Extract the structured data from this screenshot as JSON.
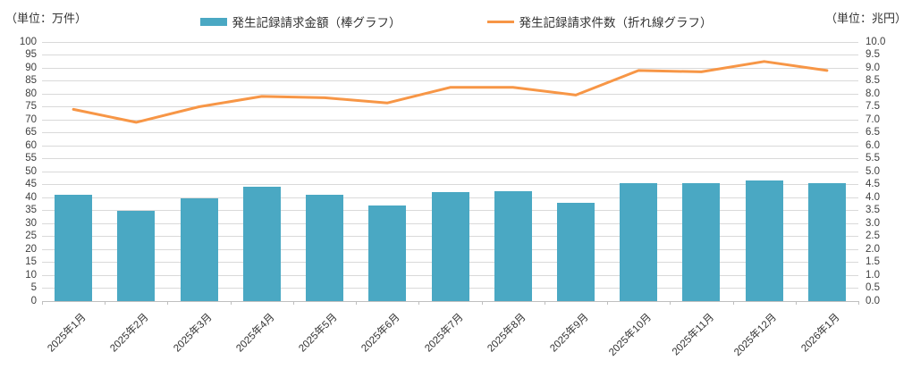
{
  "units": {
    "left": "（単位：万件）",
    "right": "（単位：兆円）"
  },
  "legend": {
    "items": [
      {
        "label": "発生記録請求金額（棒グラフ）",
        "type": "bar",
        "color": "#4AA8C3"
      },
      {
        "label": "発生記録請求件数（折れ線グラフ）",
        "type": "line",
        "color": "#F79646"
      }
    ]
  },
  "chart_data": {
    "type": "bar",
    "subtype": "combo-bar-line",
    "categories": [
      "2025年1月",
      "2025年2月",
      "2025年3月",
      "2025年4月",
      "2025年5月",
      "2025年6月",
      "2025年7月",
      "2025年8月",
      "2025年9月",
      "2025年10月",
      "2025年11月",
      "2025年12月",
      "2026年1月"
    ],
    "series": [
      {
        "name": "発生記録請求金額（棒グラフ）",
        "type": "bar",
        "axis": "left",
        "color": "#4AA8C3",
        "values": [
          41,
          35,
          39.5,
          44,
          41,
          37,
          42,
          42.5,
          38,
          45.5,
          45.5,
          46.5,
          45.5
        ]
      },
      {
        "name": "発生記録請求件数（折れ線グラフ）",
        "type": "line",
        "axis": "right",
        "color": "#F79646",
        "values": [
          7.4,
          6.9,
          7.5,
          7.9,
          7.85,
          7.65,
          8.25,
          8.25,
          7.95,
          8.9,
          8.85,
          9.25,
          8.9
        ]
      }
    ],
    "left_axis": {
      "label": "（単位：万件）",
      "min": 0,
      "max": 100,
      "step": 5,
      "ticks": [
        "100",
        "95",
        "90",
        "85",
        "80",
        "75",
        "70",
        "65",
        "60",
        "55",
        "50",
        "45",
        "40",
        "35",
        "30",
        "25",
        "20",
        "15",
        "10",
        "5",
        "0"
      ]
    },
    "right_axis": {
      "label": "（単位：兆円）",
      "min": 0,
      "max": 10,
      "step": 0.5,
      "ticks": [
        "10.0",
        "9.5",
        "9.0",
        "8.5",
        "8.0",
        "7.5",
        "7.0",
        "6.5",
        "6.0",
        "5.5",
        "5.0",
        "4.5",
        "4.0",
        "3.5",
        "3.0",
        "2.5",
        "2.0",
        "1.5",
        "1.0",
        "0.5",
        "0.0"
      ]
    },
    "grid": true,
    "legend_position": "top",
    "gridline_color": "#D9D9D9",
    "axis_line_color": "#BFBFBF"
  }
}
